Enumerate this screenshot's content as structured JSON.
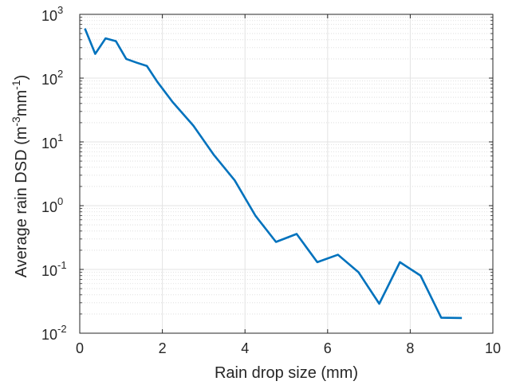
{
  "chart_data": {
    "type": "line",
    "xlabel": "Rain drop size (mm)",
    "ylabel_parts": [
      "Average rain DSD (m",
      "-3",
      "mm",
      "-1",
      ")"
    ],
    "xlim": [
      0,
      10
    ],
    "ylim": [
      0.01,
      1000
    ],
    "y_scale": "log",
    "grid": true,
    "minor_grid": true,
    "line_color": "#0072BD",
    "x_ticks": [
      0,
      2,
      4,
      6,
      8,
      10
    ],
    "x_tick_labels": [
      "0",
      "2",
      "4",
      "6",
      "8",
      "10"
    ],
    "y_ticks": [
      0.01,
      0.1,
      1,
      10,
      100,
      1000
    ],
    "y_tick_labels": [
      {
        "base": "10",
        "exp": "-2"
      },
      {
        "base": "10",
        "exp": "-1"
      },
      {
        "base": "10",
        "exp": "0"
      },
      {
        "base": "10",
        "exp": "1"
      },
      {
        "base": "10",
        "exp": "2"
      },
      {
        "base": "10",
        "exp": "3"
      }
    ],
    "series": [
      {
        "x": [
          0.125,
          0.375,
          0.625,
          0.875,
          1.125,
          1.375,
          1.625,
          1.875,
          2.25,
          2.75,
          3.25,
          3.75,
          4.25,
          4.75,
          5.25,
          5.75,
          6.25,
          6.75,
          7.25,
          7.75,
          8.25,
          8.75,
          9.25
        ],
        "values": [
          600,
          240,
          420,
          380,
          200,
          175,
          155,
          88,
          42,
          18,
          6.2,
          2.5,
          0.7,
          0.27,
          0.36,
          0.13,
          0.17,
          0.09,
          0.029,
          0.13,
          0.08,
          0.0175,
          0.0173
        ]
      }
    ]
  }
}
